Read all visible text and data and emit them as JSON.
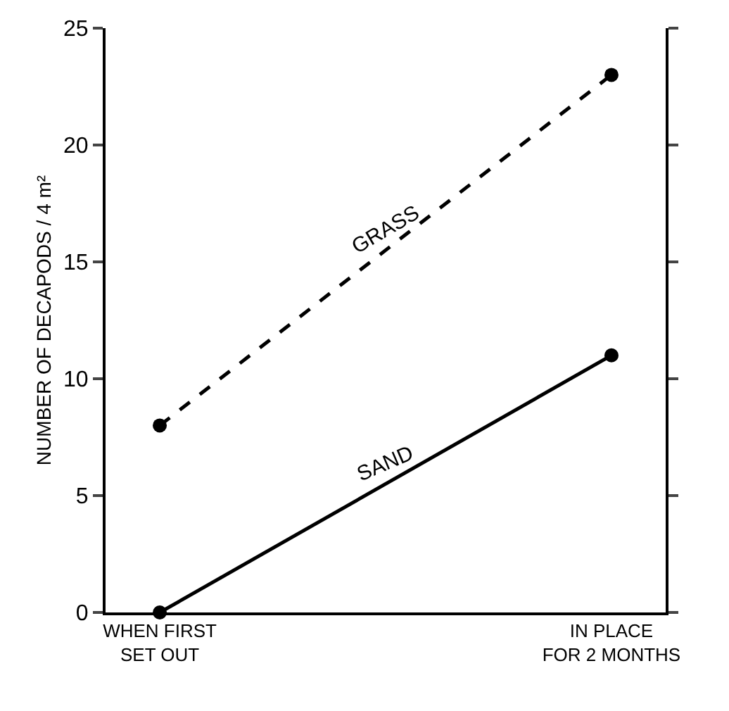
{
  "chart_data": {
    "type": "line",
    "categories": [
      "WHEN FIRST\nSET OUT",
      "IN PLACE\nFOR 2 MONTHS"
    ],
    "ylabel": "NUMBER OF DECAPODS / 4 m²",
    "series": [
      {
        "name": "GRASS",
        "color": "#000000",
        "values": [
          8,
          23
        ],
        "line_style": "dashed"
      },
      {
        "name": "SAND",
        "color": "#000000",
        "values": [
          0,
          11
        ],
        "line_style": "solid"
      }
    ],
    "ylim": [
      0,
      25
    ],
    "yticks": [
      0,
      5,
      10,
      15,
      20,
      25
    ],
    "marker": "circle",
    "grid": false,
    "legend": false
  }
}
